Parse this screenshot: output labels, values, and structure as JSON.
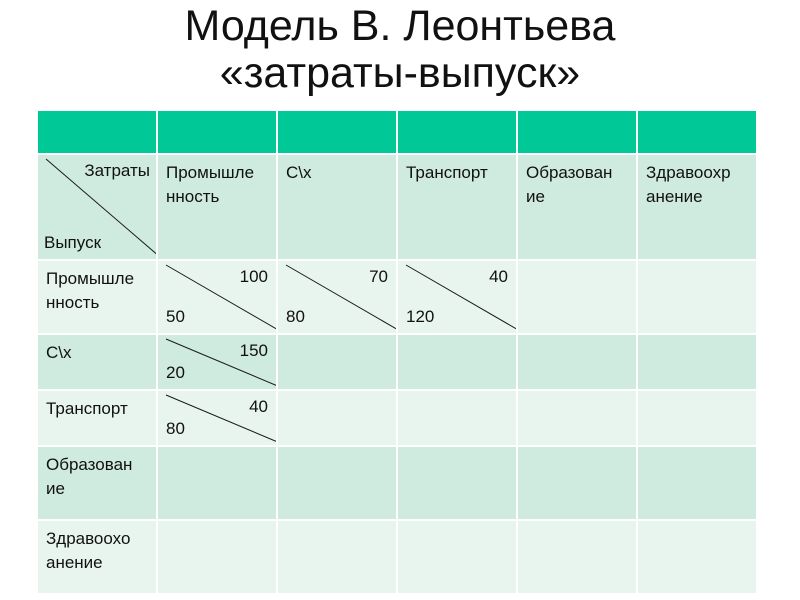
{
  "title": {
    "line1": "Модель В. Леонтьева",
    "line2": "«затраты-выпуск»"
  },
  "corner": {
    "top": "Затраты",
    "bottom": "Выпуск"
  },
  "columns": [
    "Промышленность",
    "С\\х",
    "Транспорт",
    "Образование",
    "Здравоохранение"
  ],
  "column_display": [
    "Промышле\nнность",
    "С\\х",
    "Транспорт",
    "Образован\nие",
    "Здравоохр\nанение"
  ],
  "rows": [
    {
      "label": "Промышле\nнность",
      "cells": [
        {
          "top": "100",
          "bottom": "50"
        },
        {
          "top": "70",
          "bottom": "80"
        },
        {
          "top": "40",
          "bottom": "120"
        },
        null,
        null
      ]
    },
    {
      "label": "С\\х",
      "cells": [
        {
          "top": "150",
          "bottom": "20"
        },
        null,
        null,
        null,
        null
      ]
    },
    {
      "label": "Транспорт",
      "cells": [
        {
          "top": "40",
          "bottom": "80"
        },
        null,
        null,
        null,
        null
      ]
    },
    {
      "label": "Образован\nие",
      "cells": [
        null,
        null,
        null,
        null,
        null
      ]
    },
    {
      "label": "Здравоохо\nанение",
      "cells": [
        null,
        null,
        null,
        null,
        null
      ]
    }
  ],
  "colors": {
    "header": "#00c896",
    "row_even": "#cfeadf",
    "row_odd": "#e8f5ef"
  }
}
